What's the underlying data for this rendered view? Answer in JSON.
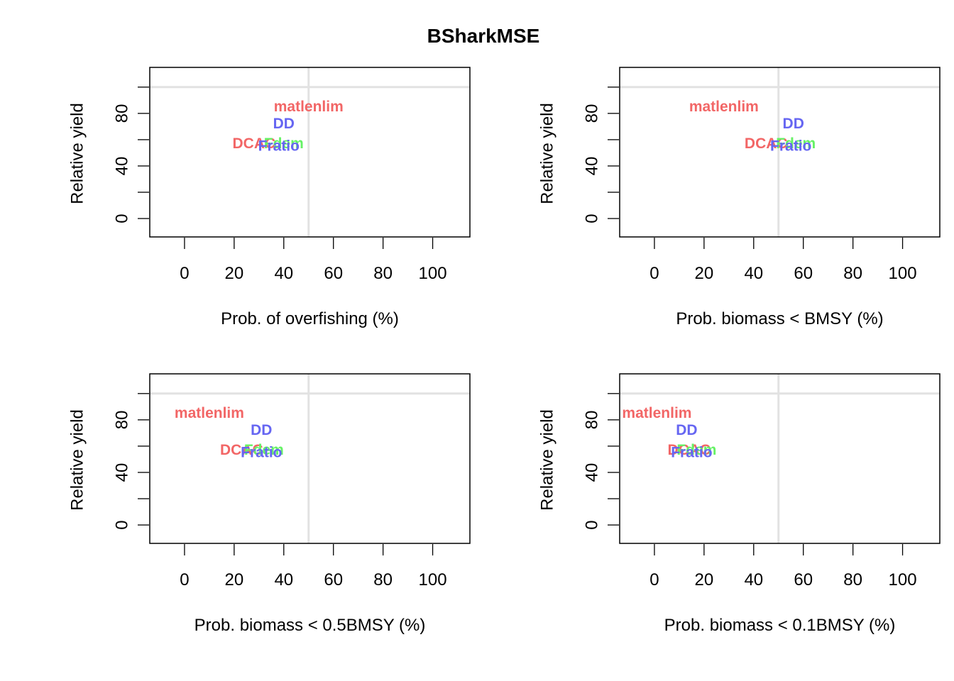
{
  "title": "BSharkMSE",
  "colors": {
    "DCAC": "#F26666",
    "matlenlim": "#F26666",
    "DD": "#6666F2",
    "Fratio": "#6666F2",
    "Fdem": "#66F266",
    "refline": "#E2E2E2"
  },
  "chart_data": [
    {
      "type": "scatter",
      "xlabel": "Prob. of overfishing (%)",
      "ylabel": "Relative yield",
      "xlim": [
        -14,
        115
      ],
      "ylim": [
        -14,
        115
      ],
      "xticks": [
        0,
        20,
        40,
        60,
        80,
        100
      ],
      "yticks": [
        0,
        40,
        80
      ],
      "refline_x": 50,
      "refline_y": 100,
      "points": [
        {
          "label": "matlenlim",
          "x": 50,
          "y": 85
        },
        {
          "label": "DD",
          "x": 40,
          "y": 72
        },
        {
          "label": "DCAC",
          "x": 28,
          "y": 57
        },
        {
          "label": "Fdem",
          "x": 40,
          "y": 57
        },
        {
          "label": "Fratio",
          "x": 38,
          "y": 55
        }
      ]
    },
    {
      "type": "scatter",
      "xlabel": "Prob. biomass < BMSY (%)",
      "ylabel": "Relative yield",
      "xlim": [
        -14,
        115
      ],
      "ylim": [
        -14,
        115
      ],
      "xticks": [
        0,
        20,
        40,
        60,
        80,
        100
      ],
      "yticks": [
        0,
        40,
        80
      ],
      "refline_x": 50,
      "refline_y": 100,
      "points": [
        {
          "label": "matlenlim",
          "x": 28,
          "y": 85
        },
        {
          "label": "DD",
          "x": 56,
          "y": 72
        },
        {
          "label": "DCAC",
          "x": 45,
          "y": 57
        },
        {
          "label": "Fdem",
          "x": 57,
          "y": 57
        },
        {
          "label": "Fratio",
          "x": 55,
          "y": 55
        }
      ]
    },
    {
      "type": "scatter",
      "xlabel": "Prob. biomass < 0.5BMSY (%)",
      "ylabel": "Relative yield",
      "xlim": [
        -14,
        115
      ],
      "ylim": [
        -14,
        115
      ],
      "xticks": [
        0,
        20,
        40,
        60,
        80,
        100
      ],
      "yticks": [
        0,
        40,
        80
      ],
      "refline_x": 50,
      "refline_y": 100,
      "points": [
        {
          "label": "matlenlim",
          "x": 10,
          "y": 85
        },
        {
          "label": "DD",
          "x": 31,
          "y": 72
        },
        {
          "label": "DCAC",
          "x": 23,
          "y": 57
        },
        {
          "label": "Fdem",
          "x": 32,
          "y": 57
        },
        {
          "label": "Fratio",
          "x": 31,
          "y": 55
        }
      ]
    },
    {
      "type": "scatter",
      "xlabel": "Prob. biomass < 0.1BMSY (%)",
      "ylabel": "Relative yield",
      "xlim": [
        -14,
        115
      ],
      "ylim": [
        -14,
        115
      ],
      "xticks": [
        0,
        20,
        40,
        60,
        80,
        100
      ],
      "yticks": [
        0,
        40,
        80
      ],
      "refline_x": 50,
      "refline_y": 100,
      "points": [
        {
          "label": "matlenlim",
          "x": 1,
          "y": 85
        },
        {
          "label": "DD",
          "x": 13,
          "y": 72
        },
        {
          "label": "DCAC",
          "x": 14,
          "y": 57
        },
        {
          "label": "Fdem",
          "x": 17,
          "y": 57
        },
        {
          "label": "Fratio",
          "x": 15,
          "y": 55
        }
      ]
    }
  ]
}
